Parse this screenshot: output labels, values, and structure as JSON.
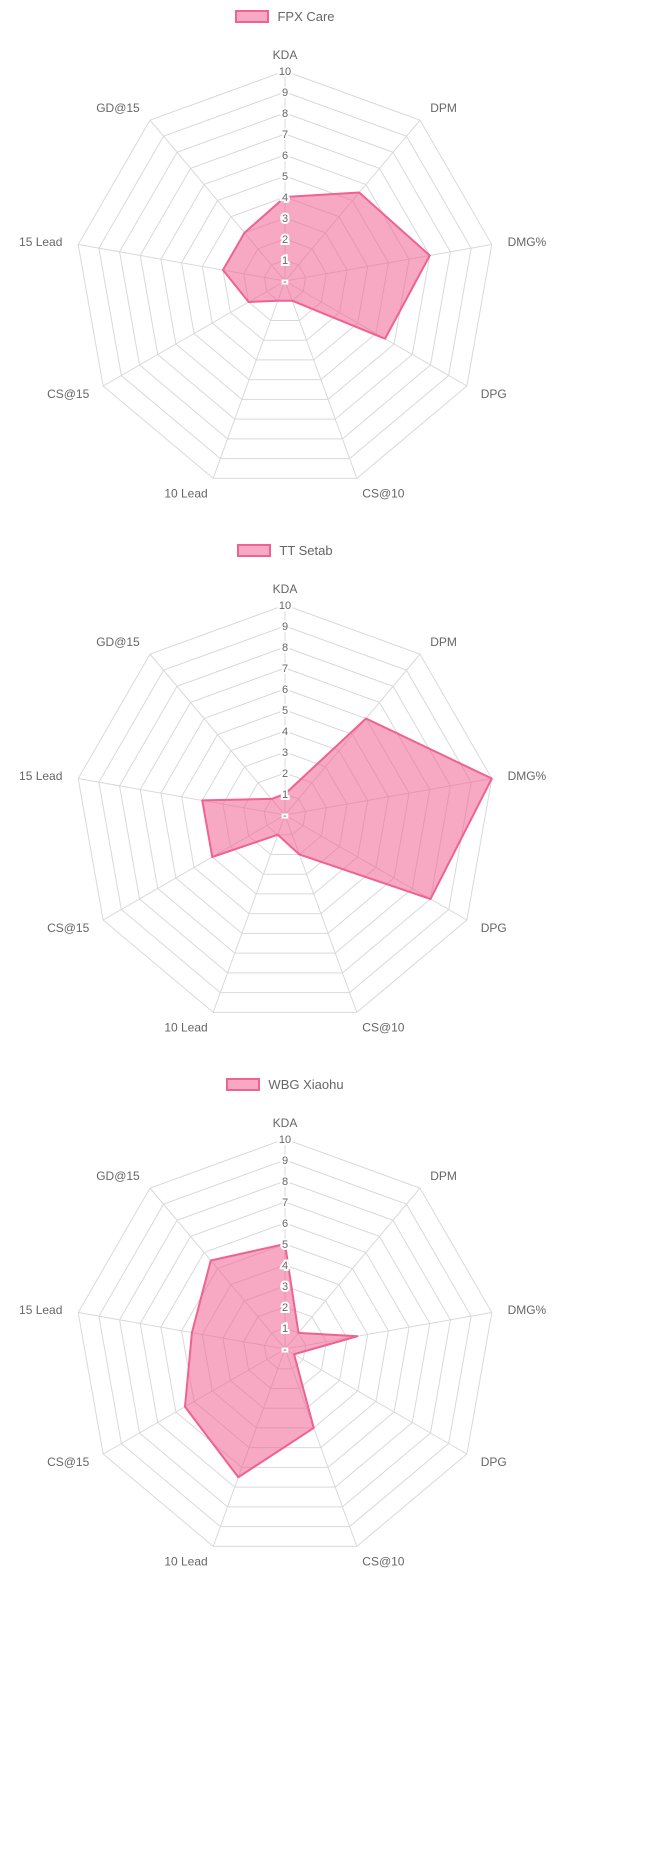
{
  "style": {
    "background": "#ffffff",
    "series_fill": "rgba(240, 98, 146, 0.55)",
    "series_stroke": "#ef6291",
    "grid_color": "#d9d9d9",
    "axis_label_color": "#666666",
    "tick_label_color": "#666666",
    "legend_text_color": "#666666"
  },
  "chart_data": [
    {
      "type": "radar",
      "legend": "FPX Care",
      "legend_position": "top",
      "grid": true,
      "categories": [
        "KDA",
        "DPM",
        "DMG%",
        "DPG",
        "CS@10",
        "10 Lead",
        "CS@15",
        "15 Lead",
        "GD@15"
      ],
      "values": [
        4,
        5.5,
        7,
        5.5,
        1,
        1,
        2,
        3,
        3
      ],
      "scale": {
        "min": 0,
        "max": 10,
        "step": 1,
        "tick_labels": [
          "10",
          "9",
          "8",
          "7",
          "6",
          "5",
          "4",
          "3",
          "2",
          "1",
          "-"
        ]
      }
    },
    {
      "type": "radar",
      "legend": "TT Setab",
      "legend_position": "top",
      "grid": true,
      "categories": [
        "KDA",
        "DPM",
        "DMG%",
        "DPG",
        "CS@10",
        "10 Lead",
        "CS@15",
        "15 Lead",
        "GD@15"
      ],
      "values": [
        1,
        6,
        10,
        8,
        2,
        1,
        4,
        4,
        1
      ],
      "scale": {
        "min": 0,
        "max": 10,
        "step": 1,
        "tick_labels": [
          "10",
          "9",
          "8",
          "7",
          "6",
          "5",
          "4",
          "3",
          "2",
          "1",
          "-"
        ]
      }
    },
    {
      "type": "radar",
      "legend": "WBG Xiaohu",
      "legend_position": "top",
      "grid": true,
      "categories": [
        "KDA",
        "DPM",
        "DMG%",
        "DPG",
        "CS@10",
        "10 Lead",
        "CS@15",
        "15 Lead",
        "GD@15"
      ],
      "values": [
        5,
        1,
        3.5,
        0.5,
        4,
        6.5,
        5.5,
        4.5,
        5.5
      ],
      "scale": {
        "min": 0,
        "max": 10,
        "step": 1,
        "tick_labels": [
          "10",
          "9",
          "8",
          "7",
          "6",
          "5",
          "4",
          "3",
          "2",
          "1",
          "-"
        ]
      }
    }
  ]
}
